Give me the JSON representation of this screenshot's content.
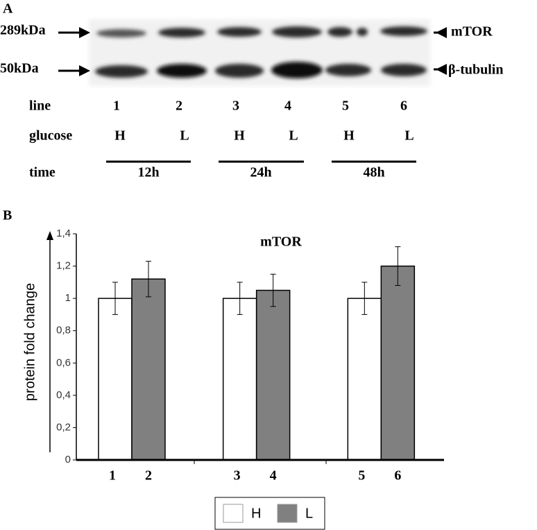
{
  "panel_a": {
    "label": "A",
    "markers": [
      "289kDa",
      "50kDa"
    ],
    "proteins": [
      "mTOR",
      "β-tubulin"
    ],
    "row_labels": [
      "line",
      "glucose",
      "time"
    ],
    "lines": [
      "1",
      "2",
      "3",
      "4",
      "5",
      "6"
    ],
    "glucose": [
      "H",
      "L",
      "H",
      "L",
      "H",
      "L"
    ],
    "times": [
      "12h",
      "24h",
      "48h"
    ]
  },
  "chart_data": {
    "type": "bar",
    "panel_label": "B",
    "title": "mTOR",
    "ylabel": "protein fold change",
    "categories": [
      null,
      null,
      null
    ],
    "series": [
      {
        "name": "H",
        "color": "#ffffff",
        "values": [
          1,
          1,
          1
        ],
        "errors": [
          0.1,
          0.1,
          0.1
        ],
        "bar_labels": [
          "1",
          "3",
          "5"
        ]
      },
      {
        "name": "L",
        "color": "#808080",
        "values": [
          1.12,
          1.05,
          1.2
        ],
        "errors": [
          0.11,
          0.1,
          0.12
        ],
        "bar_labels": [
          "2",
          "4",
          "6"
        ]
      }
    ],
    "ylim": [
      0,
      1.4
    ],
    "yticks": [
      0,
      {
        "value": 0.2,
        "label": "0,2"
      },
      {
        "value": 0.4,
        "label": "0,4"
      },
      {
        "value": 0.6,
        "label": "0,6"
      },
      {
        "value": 0.8,
        "label": "0,8"
      },
      1,
      {
        "value": 1.2,
        "label": "1,2"
      },
      {
        "value": 1.4,
        "label": "1,4"
      }
    ],
    "legend": "bottom"
  }
}
